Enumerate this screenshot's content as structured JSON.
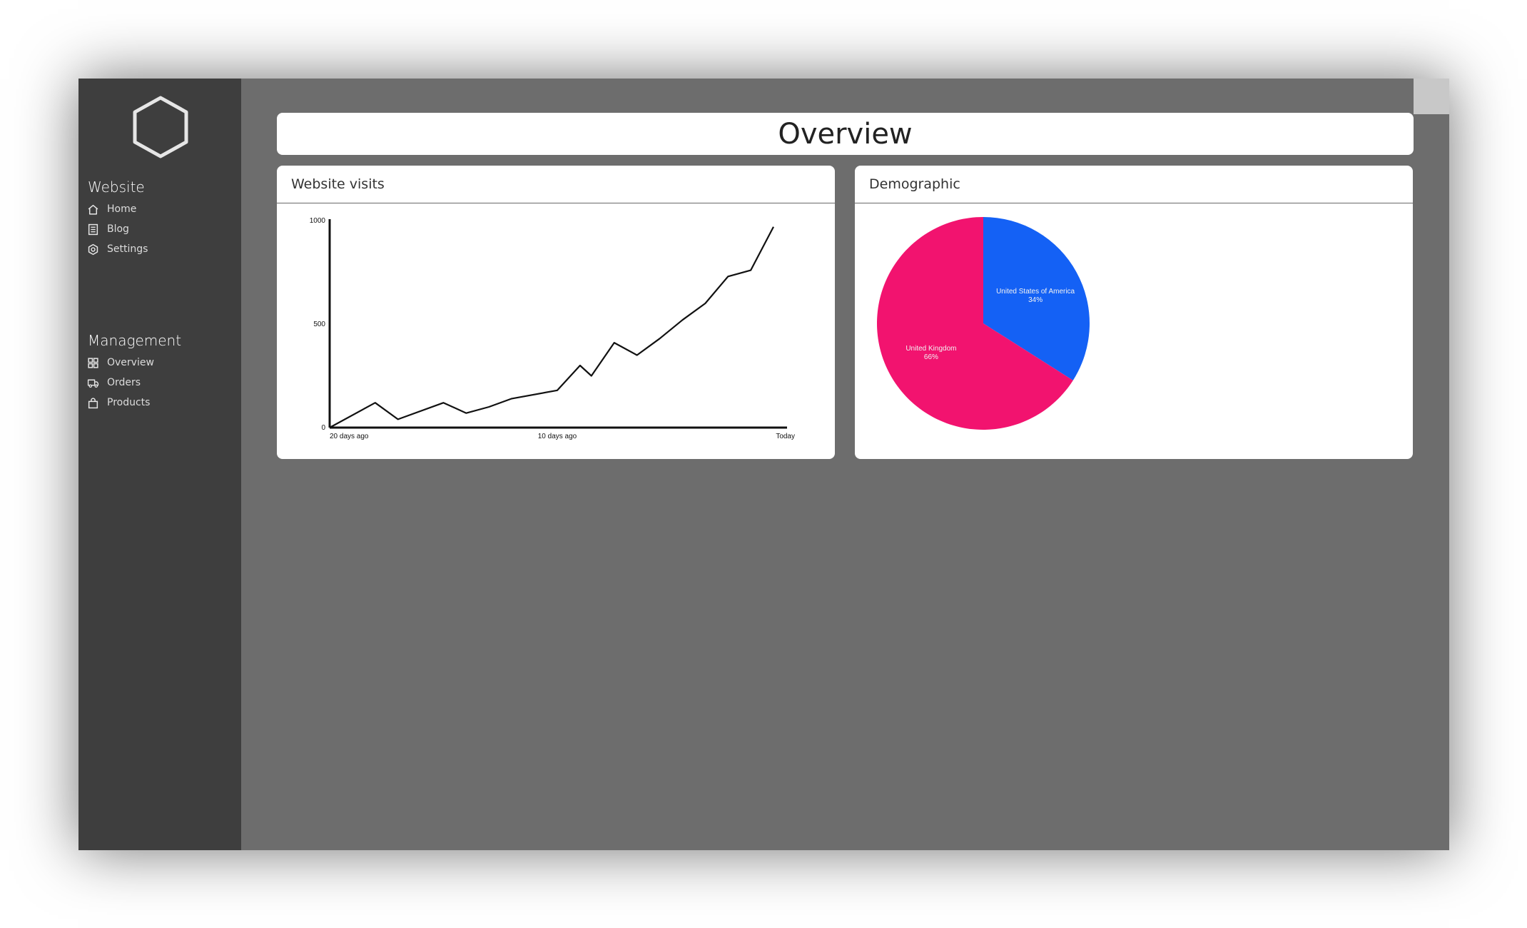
{
  "sidebar": {
    "sections": [
      {
        "heading": "Website",
        "items": [
          {
            "label": "Home",
            "icon": "home-icon"
          },
          {
            "label": "Blog",
            "icon": "blog-icon"
          },
          {
            "label": "Settings",
            "icon": "gear-icon"
          }
        ]
      },
      {
        "heading": "Management",
        "items": [
          {
            "label": "Overview",
            "icon": "grid-icon"
          },
          {
            "label": "Orders",
            "icon": "truck-icon"
          },
          {
            "label": "Products",
            "icon": "bag-icon"
          }
        ]
      }
    ]
  },
  "page": {
    "title": "Overview"
  },
  "cards": {
    "visits": {
      "title": "Website visits"
    },
    "demographic": {
      "title": "Demographic"
    }
  },
  "colors": {
    "sidebar_bg": "#3e3e3e",
    "content_bg": "#6d6d6d",
    "uk": "#f2136f",
    "usa": "#1461f5"
  },
  "chart_data": [
    {
      "type": "line",
      "title": "",
      "xlabel": "",
      "ylabel": "",
      "x_ticks": [
        "20 days ago",
        "10 days ago",
        "Today"
      ],
      "y_ticks": [
        "0",
        "500",
        "1000"
      ],
      "ylim": [
        0,
        1000
      ],
      "xlim": [
        20,
        0
      ],
      "x": [
        20,
        18,
        17,
        15,
        14,
        13,
        12,
        10,
        9,
        8.5,
        7.5,
        6.5,
        5.5,
        4.5,
        3.5,
        2.5,
        1.5,
        0.5
      ],
      "y": [
        0,
        120,
        40,
        120,
        70,
        100,
        140,
        180,
        300,
        250,
        410,
        350,
        430,
        520,
        600,
        730,
        760,
        970
      ],
      "grid": false
    },
    {
      "type": "pie",
      "title": "",
      "labels": [
        "United States of America",
        "United Kingdom"
      ],
      "values": [
        34,
        66
      ],
      "value_labels": [
        "34%",
        "66%"
      ]
    }
  ]
}
